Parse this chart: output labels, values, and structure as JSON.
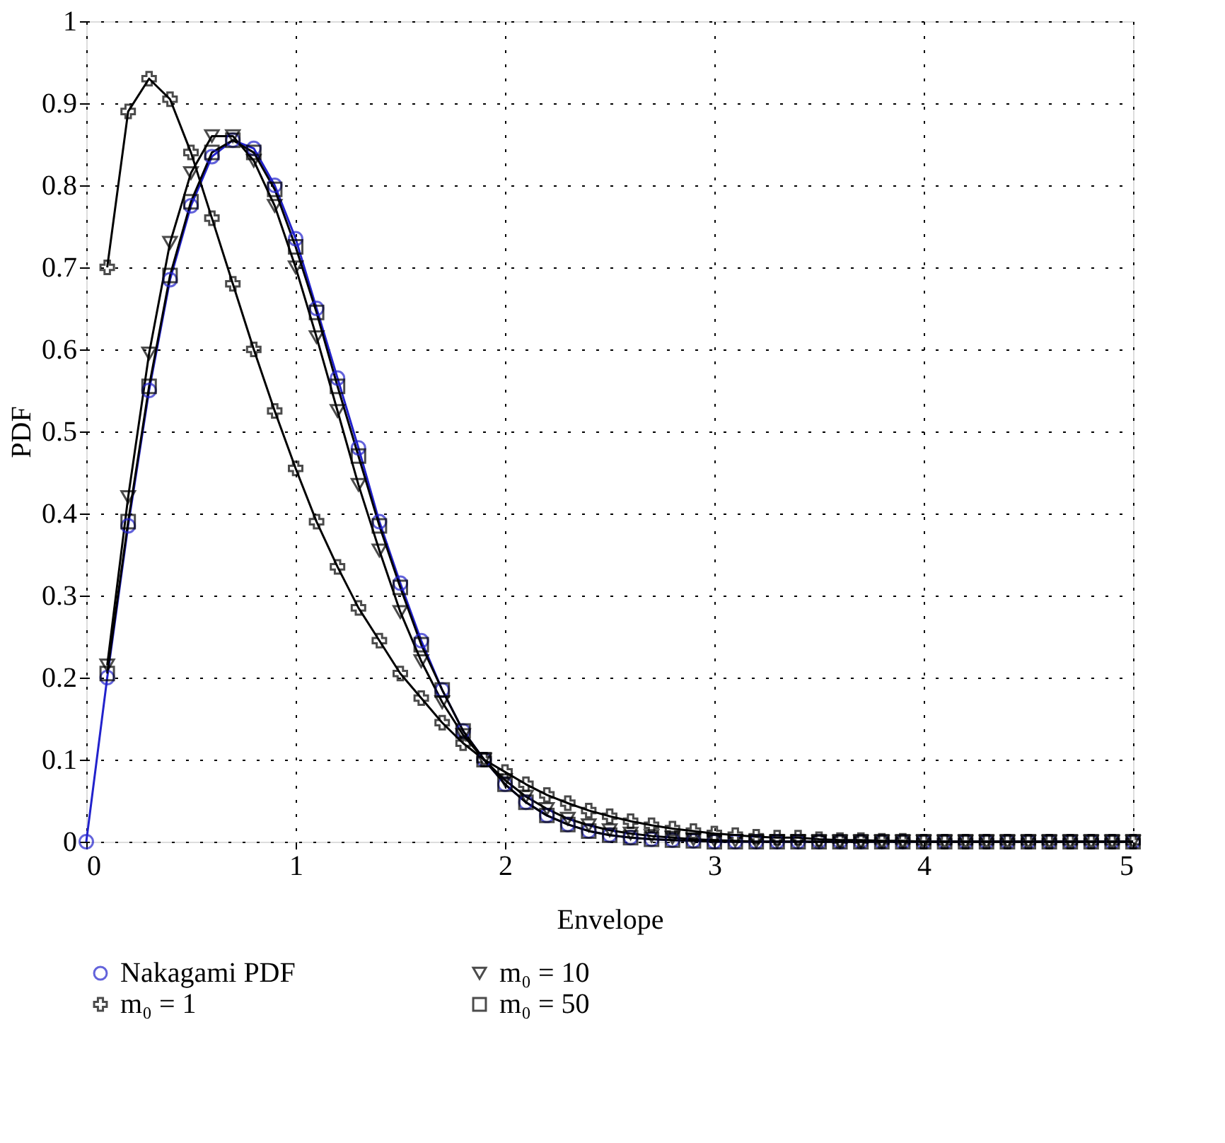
{
  "chart_data": {
    "type": "line",
    "xlabel": "Envelope",
    "ylabel": "PDF",
    "x": [
      0,
      0.1,
      0.2,
      0.3,
      0.4,
      0.5,
      0.6,
      0.7,
      0.8,
      0.9,
      1,
      1.1,
      1.2,
      1.3,
      1.4,
      1.5,
      1.6,
      1.7,
      1.8,
      1.9,
      2,
      2.1,
      2.2,
      2.3,
      2.4,
      2.5,
      2.6,
      2.7,
      2.8,
      2.9,
      3,
      3.1,
      3.2,
      3.3,
      3.4,
      3.5,
      3.6,
      3.7,
      3.8,
      3.9,
      4,
      4.1,
      4.2,
      4.3,
      4.4,
      4.5,
      4.6,
      4.7,
      4.8,
      4.9,
      5
    ],
    "series": [
      {
        "name": "Nakagami PDF",
        "color": "#2222cc",
        "marker": "circle",
        "values": [
          0,
          0.2,
          0.385,
          0.55,
          0.685,
          0.775,
          0.835,
          0.855,
          0.845,
          0.8,
          0.735,
          0.65,
          0.565,
          0.48,
          0.39,
          0.315,
          0.245,
          0.185,
          0.135,
          0.1,
          0.07,
          0.048,
          0.032,
          0.021,
          0.013,
          0.008,
          0.005,
          0.003,
          0.002,
          0.001,
          0,
          0,
          0,
          0,
          0,
          0,
          0,
          0,
          0,
          0,
          0,
          0,
          0,
          0,
          0,
          0,
          0,
          0,
          0,
          0,
          0
        ]
      },
      {
        "name": "m₀ = 1",
        "color": "#000000",
        "marker": "cross",
        "values": [
          null,
          0.7,
          0.89,
          0.93,
          0.905,
          0.84,
          0.76,
          0.68,
          0.6,
          0.525,
          0.455,
          0.39,
          0.335,
          0.285,
          0.245,
          0.205,
          0.175,
          0.145,
          0.12,
          0.1,
          0.085,
          0.07,
          0.057,
          0.047,
          0.038,
          0.031,
          0.025,
          0.02,
          0.016,
          0.013,
          0.01,
          0.008,
          0.006,
          0.005,
          0.005,
          0.003,
          0.002,
          0.002,
          0.001,
          0.001,
          0,
          0,
          0,
          0,
          0,
          0,
          0,
          0,
          0,
          0,
          0
        ]
      },
      {
        "name": "m₀ = 10",
        "color": "#000000",
        "marker": "triangle",
        "values": [
          null,
          0.215,
          0.42,
          0.595,
          0.73,
          0.815,
          0.86,
          0.86,
          0.83,
          0.775,
          0.7,
          0.615,
          0.525,
          0.435,
          0.355,
          0.28,
          0.22,
          0.17,
          0.13,
          0.1,
          0.075,
          0.055,
          0.04,
          0.028,
          0.02,
          0.014,
          0.01,
          0.007,
          0.005,
          0.003,
          0.002,
          0.001,
          0,
          0,
          0,
          0,
          0,
          0,
          0,
          0,
          0,
          0,
          0,
          0,
          0,
          0,
          0,
          0,
          0,
          0,
          0
        ]
      },
      {
        "name": "m₀ = 50",
        "color": "#000000",
        "marker": "square",
        "values": [
          null,
          0.205,
          0.39,
          0.555,
          0.69,
          0.78,
          0.84,
          0.855,
          0.84,
          0.795,
          0.725,
          0.645,
          0.555,
          0.47,
          0.385,
          0.31,
          0.24,
          0.185,
          0.135,
          0.1,
          0.07,
          0.048,
          0.032,
          0.021,
          0.013,
          0.008,
          0.005,
          0.003,
          0.002,
          0.001,
          0,
          0,
          0,
          0,
          0,
          0,
          0,
          0,
          0,
          0,
          0,
          0,
          0,
          0,
          0,
          0,
          0,
          0,
          0,
          0,
          0
        ]
      }
    ],
    "xlim": [
      0,
      5
    ],
    "xticks": [
      0,
      1,
      2,
      3,
      4,
      5
    ],
    "ylim": [
      0,
      1
    ],
    "yticks": [
      0,
      0.1,
      0.2,
      0.3,
      0.4,
      0.5,
      0.6,
      0.7,
      0.8,
      0.9,
      1
    ],
    "grid": true,
    "legend": "bottom",
    "line_style": "solid"
  }
}
